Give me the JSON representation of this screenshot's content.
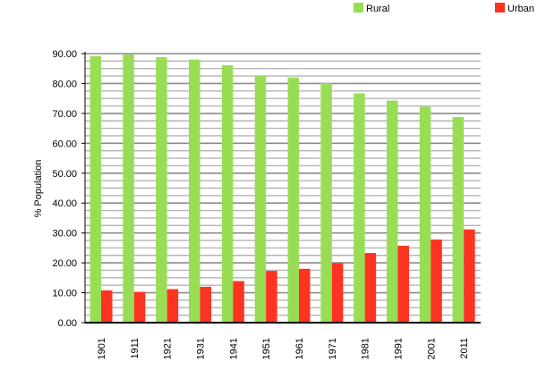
{
  "chart_data": {
    "type": "bar",
    "title": "",
    "xlabel": "",
    "ylabel": "% Population",
    "ylim": [
      0,
      90
    ],
    "y_ticks": [
      "0.00",
      "10.00",
      "20.00",
      "30.00",
      "40.00",
      "50.00",
      "60.00",
      "70.00",
      "80.00",
      "90.00"
    ],
    "grid": true,
    "legend_position": "top-right",
    "categories": [
      "1901",
      "1911",
      "1921",
      "1931",
      "1941",
      "1951",
      "1961",
      "1971",
      "1981",
      "1991",
      "2001",
      "2011"
    ],
    "series": [
      {
        "name": "Rural",
        "color": "#99dd55",
        "values": [
          89.2,
          89.7,
          88.8,
          88.0,
          86.1,
          82.7,
          82.0,
          80.1,
          76.7,
          74.3,
          72.2,
          68.8
        ]
      },
      {
        "name": "Urban",
        "color": "#ff3322",
        "values": [
          10.8,
          10.3,
          11.2,
          12.0,
          13.9,
          17.3,
          18.0,
          19.9,
          23.3,
          25.7,
          27.8,
          31.2
        ]
      }
    ]
  }
}
